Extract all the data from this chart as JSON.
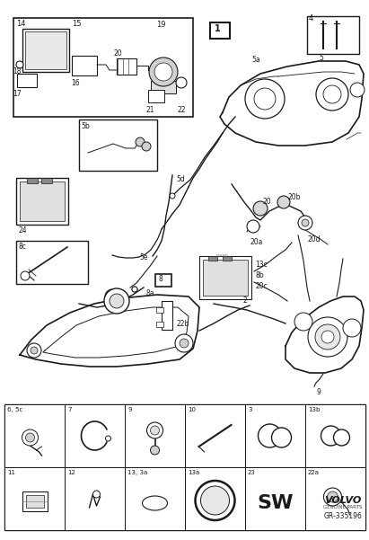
{
  "fig_width": 4.11,
  "fig_height": 6.01,
  "dpi": 100,
  "bg_color": "#ffffff",
  "line_color": "#1a1a1a",
  "volvo_text": "VOLVO",
  "genuine_parts": "GENUINE PARTS",
  "diagram_number": "GR-335196",
  "bottom_grid_row1": [
    "6, 5c",
    "7",
    "9",
    "10",
    "3",
    "13b"
  ],
  "bottom_grid_row2": [
    "11",
    "12",
    "13, 3a",
    "13a",
    "23",
    "22a"
  ]
}
